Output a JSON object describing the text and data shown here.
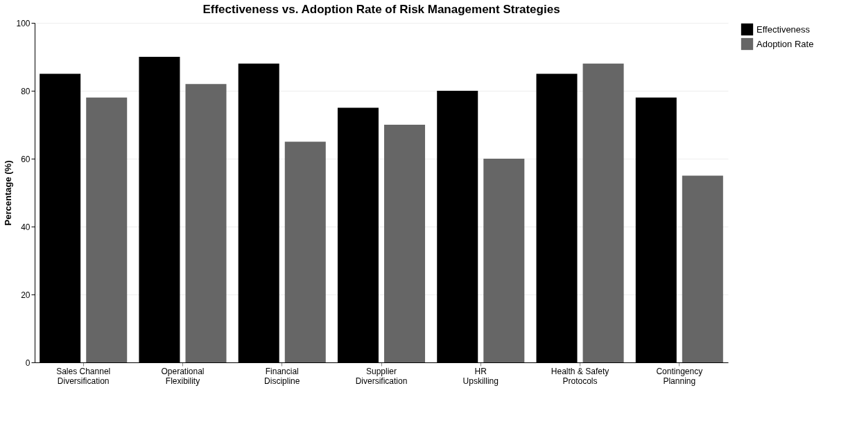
{
  "chart_data": {
    "type": "bar",
    "title": "Effectiveness vs. Adoption Rate of Risk Management Strategies",
    "ylabel": "Percentage (%)",
    "categories": [
      "Sales Channel\nDiversification",
      "Operational\nFlexibility",
      "Financial\nDiscipline",
      "Supplier\nDiversification",
      "HR\nUpskilling",
      "Health & Safety\nProtocols",
      "Contingency\nPlanning"
    ],
    "series": [
      {
        "name": "Effectiveness",
        "color": "#000000",
        "values": [
          85,
          90,
          88,
          75,
          80,
          85,
          78
        ]
      },
      {
        "name": "Adoption Rate",
        "color": "#666666",
        "values": [
          78,
          82,
          65,
          70,
          60,
          88,
          55
        ]
      }
    ],
    "ylim": [
      0,
      100
    ],
    "yticks": [
      0,
      20,
      40,
      60,
      80,
      100
    ],
    "grid": "y",
    "legend": "right"
  }
}
